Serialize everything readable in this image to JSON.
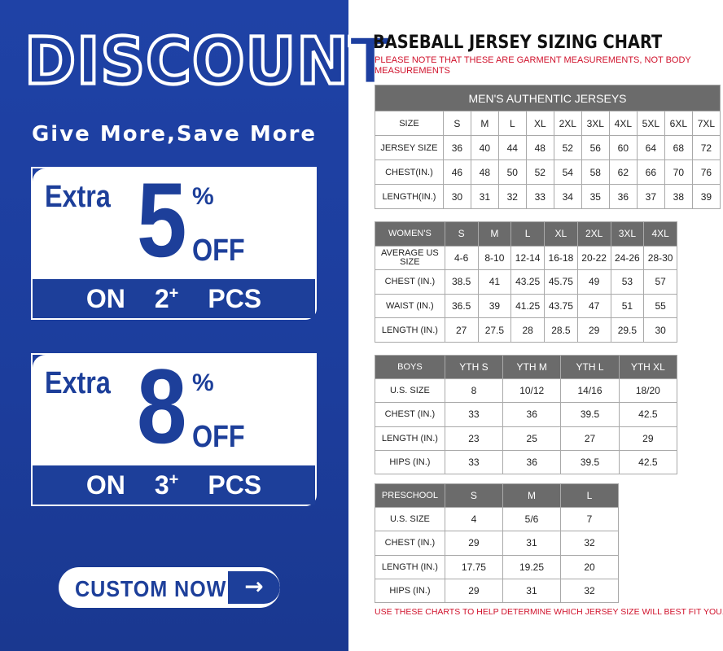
{
  "promo": {
    "heading": "DISCOUNT",
    "tagline": "Give More,Save More",
    "offers": [
      {
        "extra": "Extra",
        "value": "5",
        "percent": "%",
        "off": "OFF",
        "on": "ON",
        "qty": "2",
        "plus": "+",
        "pcs": "PCS"
      },
      {
        "extra": "Extra",
        "value": "8",
        "percent": "%",
        "off": "OFF",
        "on": "ON",
        "qty": "3",
        "plus": "+",
        "pcs": "PCS"
      }
    ],
    "button_label": "CUSTOM NOW",
    "button_icon": "arrow-right-icon",
    "brand_color": "#1d3fa0"
  },
  "chart": {
    "title": "BASEBALL JERSEY SIZING CHART",
    "note": "PLEASE NOTE THAT THESE ARE GARMENT MEASUREMENTS, NOT BODY MEASUREMENTS",
    "footer": "USE THESE CHARTS TO HELP DETERMINE WHICH JERSEY SIZE WILL BEST FIT YOU.",
    "note_color": "#d0112b",
    "header_color": "#6b6b6b",
    "tables": [
      {
        "caption": "MEN'S AUTHENTIC JERSEYS",
        "rows": [
          [
            "SIZE",
            "S",
            "M",
            "L",
            "XL",
            "2XL",
            "3XL",
            "4XL",
            "5XL",
            "6XL",
            "7XL"
          ],
          [
            "JERSEY SIZE",
            "36",
            "40",
            "44",
            "48",
            "52",
            "56",
            "60",
            "64",
            "68",
            "72"
          ],
          [
            "CHEST(IN.)",
            "46",
            "48",
            "50",
            "52",
            "54",
            "58",
            "62",
            "66",
            "70",
            "76"
          ],
          [
            "LENGTH(IN.)",
            "30",
            "31",
            "32",
            "33",
            "34",
            "35",
            "36",
            "37",
            "38",
            "39"
          ]
        ]
      },
      {
        "rows": [
          [
            "WOMEN'S",
            "S",
            "M",
            "L",
            "XL",
            "2XL",
            "3XL",
            "4XL"
          ],
          [
            "AVERAGE US SIZE",
            "4-6",
            "8-10",
            "12-14",
            "16-18",
            "20-22",
            "24-26",
            "28-30"
          ],
          [
            "CHEST (IN.)",
            "38.5",
            "41",
            "43.25",
            "45.75",
            "49",
            "53",
            "57"
          ],
          [
            "WAIST (IN.)",
            "36.5",
            "39",
            "41.25",
            "43.75",
            "47",
            "51",
            "55"
          ],
          [
            "LENGTH (IN.)",
            "27",
            "27.5",
            "28",
            "28.5",
            "29",
            "29.5",
            "30"
          ]
        ]
      },
      {
        "rows": [
          [
            "BOYS",
            "YTH S",
            "YTH M",
            "YTH L",
            "YTH XL"
          ],
          [
            "U.S. SIZE",
            "8",
            "10/12",
            "14/16",
            "18/20"
          ],
          [
            "CHEST (IN.)",
            "33",
            "36",
            "39.5",
            "42.5"
          ],
          [
            "LENGTH (IN.)",
            "23",
            "25",
            "27",
            "29"
          ],
          [
            "HIPS (IN.)",
            "33",
            "36",
            "39.5",
            "42.5"
          ]
        ]
      },
      {
        "rows": [
          [
            "PRESCHOOL",
            "S",
            "M",
            "L"
          ],
          [
            "U.S. SIZE",
            "4",
            "5/6",
            "7"
          ],
          [
            "CHEST (IN.)",
            "29",
            "31",
            "32"
          ],
          [
            "LENGTH (IN.)",
            "17.75",
            "19.25",
            "20"
          ],
          [
            "HIPS (IN.)",
            "29",
            "31",
            "32"
          ]
        ]
      }
    ]
  }
}
